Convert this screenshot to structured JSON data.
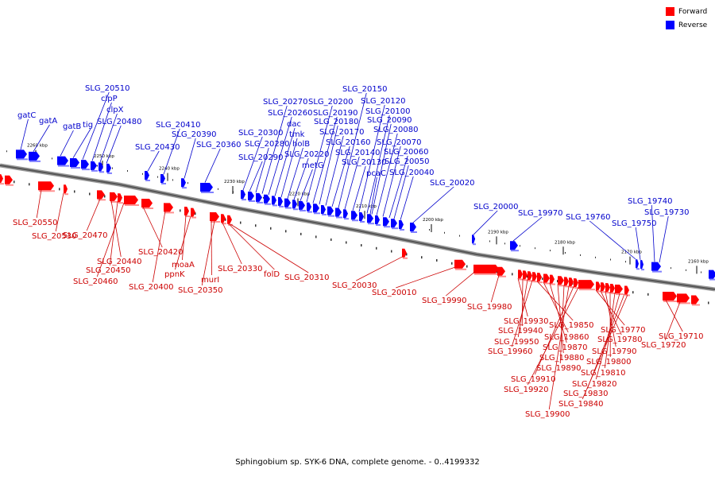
{
  "caption": "Sphingobium sp. SYK-6 DNA, complete genome. - 0..4199332",
  "legend": [
    {
      "label": "Forward",
      "color": "#ff0000"
    },
    {
      "label": "Reverse",
      "color": "#0000ff"
    }
  ],
  "colors": {
    "forward": "#ff0000",
    "reverse": "#0000ff",
    "forward_label": "#cc0000",
    "reverse_label": "#0000cc",
    "backbone": "#555555"
  },
  "kbp_marks": [
    "2260 kbp",
    "2250 kbp",
    "2240 kbp",
    "2230 kbp",
    "2220 kbp",
    "2210 kbp",
    "2200 kbp",
    "2190 kbp",
    "2180 kbp",
    "2170 kbp",
    "2160 kbp"
  ],
  "reverse_labels": [
    "gatC",
    "gatA",
    "gatB",
    "tig",
    "SLG_20510",
    "clpP",
    "clpX",
    "SLG_20480",
    "SLG_20430",
    "SLG_20410",
    "SLG_20390",
    "SLG_20360",
    "SLG_20300",
    "SLG_20290",
    "SLG_20280",
    "SLG_20270",
    "SLG_20260",
    "dac",
    "tmk",
    "holB",
    "SLG_20220",
    "metG",
    "SLG_20200",
    "SLG_20190",
    "SLG_20180",
    "SLG_20170",
    "SLG_20160",
    "SLG_20150",
    "SLG_20140",
    "SLG_20130",
    "SLG_20120",
    "SLG_20100",
    "SLG_20090",
    "SLG_20080",
    "SLG_20070",
    "SLG_20060",
    "SLG_20050",
    "pcaC",
    "SLG_20040",
    "SLG_20020",
    "SLG_20000",
    "SLG_19970",
    "SLG_19760",
    "SLG_19750",
    "SLG_19740",
    "SLG_19730"
  ],
  "forward_labels": [
    "SLG_20550",
    "SLG_20530",
    "SLG_20470",
    "SLG_20440",
    "SLG_20450",
    "SLG_20460",
    "SLG_20420",
    "SLG_20400",
    "moaA",
    "ppnK",
    "murI",
    "SLG_20350",
    "SLG_20330",
    "folD",
    "SLG_20310",
    "SLG_20030",
    "SLG_20010",
    "SLG_19990",
    "SLG_19980",
    "SLG_19930",
    "SLG_19940",
    "SLG_19950",
    "SLG_19960",
    "SLG_19850",
    "SLG_19860",
    "SLG_19870",
    "SLG_19880",
    "SLG_19890",
    "SLG_19900",
    "SLG_19910",
    "SLG_19920",
    "SLG_19770",
    "SLG_19780",
    "SLG_19790",
    "SLG_19800",
    "SLG_19810",
    "SLG_19820",
    "SLG_19830",
    "SLG_19840",
    "SLG_19710",
    "SLG_19720"
  ]
}
